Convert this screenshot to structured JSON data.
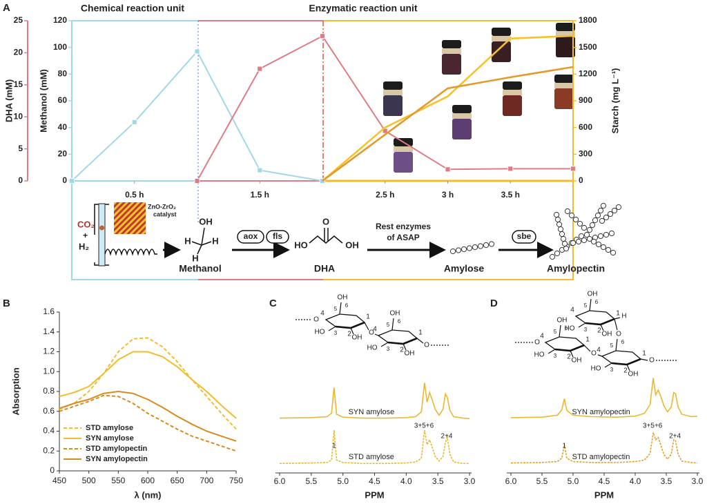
{
  "chart_data": [
    {
      "type": "line",
      "panel": "A",
      "unit_labels": [
        "Chemical reaction unit",
        "Enzymatic reaction unit"
      ],
      "x": [
        0,
        0.5,
        1,
        1.5,
        2,
        2.5,
        3,
        3.5,
        4
      ],
      "xlim": [
        0,
        4
      ],
      "xticks": [
        {
          "value": 0.5,
          "label": "0.5 h"
        },
        {
          "value": 1.5,
          "label": "1.5 h"
        },
        {
          "value": 2.5,
          "label": "2.5 h"
        },
        {
          "value": 3,
          "label": "3 h"
        },
        {
          "value": 3.5,
          "label": "3.5 h"
        }
      ],
      "ylabel": "DHA (mM)",
      "ylim": [
        0,
        25
      ],
      "yticks": [
        0,
        5,
        10,
        15,
        20,
        25
      ],
      "ycolor": "#e07b86",
      "y3label": "Methanol (mM)",
      "y3lim": [
        0,
        120
      ],
      "y3ticks": [
        0,
        20,
        40,
        60,
        80,
        100,
        120
      ],
      "y3color": "#9fd8e6",
      "y2label": "Starch (mg L⁻¹)",
      "y2lim": [
        0,
        1800
      ],
      "y2ticks": [
        0,
        300,
        600,
        900,
        1200,
        1500,
        1800
      ],
      "y2color": "#f2bd2a",
      "series": [
        {
          "color": "#9fd8e6",
          "axis": "y3",
          "marker": "square",
          "values": [
            0,
            44,
            97,
            8,
            0,
            null,
            null,
            null,
            null
          ]
        },
        {
          "color": "#e07b86",
          "axis": "y",
          "marker": "square",
          "values": [
            null,
            null,
            0,
            17.5,
            22.6,
            7.8,
            1.8,
            1.9,
            1.9
          ]
        },
        {
          "color": "#f5c22a",
          "axis": "y2",
          "values": [
            null,
            null,
            null,
            null,
            0,
            600,
            950,
            1600,
            1630
          ]
        },
        {
          "color": "#e29a2a",
          "axis": "y2",
          "values": [
            null,
            null,
            null,
            null,
            0,
            520,
            1040,
            1165,
            1280
          ]
        }
      ]
    },
    {
      "type": "line",
      "panel": "B",
      "xlabel": "λ (nm)",
      "ylabel": "Absorption",
      "x": [
        450,
        475,
        500,
        525,
        550,
        575,
        600,
        625,
        650,
        675,
        700,
        725,
        750
      ],
      "xlim": [
        450,
        750
      ],
      "xticks": [
        450,
        500,
        550,
        600,
        650,
        700,
        750
      ],
      "ylim": [
        0,
        1.6
      ],
      "yticks": [
        0,
        0.2,
        0.4,
        0.6,
        0.8,
        {
          "value": 1,
          "label": "1.0"
        },
        1.2,
        1.4,
        1.6
      ],
      "legend": "lower left",
      "series": [
        {
          "name": "STD amylose",
          "color": "#f2bd2a",
          "dashed": true,
          "values": [
            0.62,
            0.68,
            0.8,
            0.98,
            1.2,
            1.33,
            1.34,
            1.25,
            1.1,
            0.92,
            0.75,
            0.58,
            0.42
          ]
        },
        {
          "name": "SYN amylose",
          "color": "#f2bd2a",
          "values": [
            0.75,
            0.79,
            0.85,
            0.98,
            1.12,
            1.2,
            1.2,
            1.15,
            1.05,
            0.92,
            0.8,
            0.66,
            0.53
          ]
        },
        {
          "name": "STD amylopectin",
          "color": "#d98a1f",
          "dashed": true,
          "values": [
            0.6,
            0.65,
            0.7,
            0.76,
            0.75,
            0.68,
            0.58,
            0.5,
            0.42,
            0.35,
            0.3,
            0.25,
            0.2
          ]
        },
        {
          "name": "SYN amylopectin",
          "color": "#d98a1f",
          "values": [
            0.63,
            0.68,
            0.72,
            0.78,
            0.8,
            0.78,
            0.72,
            0.64,
            0.55,
            0.47,
            0.4,
            0.35,
            0.3
          ]
        }
      ]
    },
    {
      "type": "nmr",
      "panel": "C",
      "xlabel": "PPM",
      "xlim": [
        6,
        3
      ],
      "xticks": [
        {
          "value": 6,
          "label": "6.0"
        },
        5.5,
        {
          "value": 5,
          "label": "5.0"
        },
        4.5,
        {
          "value": 4,
          "label": "4.0"
        },
        3.5,
        {
          "value": 3,
          "label": "3.0"
        }
      ],
      "x": [
        6.0,
        5.5,
        5.25,
        5.18,
        5.14,
        5.1,
        5.0,
        4.7,
        4.3,
        4.0,
        3.85,
        3.76,
        3.71,
        3.67,
        3.63,
        3.59,
        3.54,
        3.48,
        3.42,
        3.38,
        3.35,
        3.31,
        3.25,
        3.1,
        3.0
      ],
      "series": [
        {
          "name": "SYN amylose",
          "color": "#e8b830",
          "values": [
            2,
            3,
            5,
            12,
            65,
            10,
            4,
            2,
            2,
            3,
            5,
            15,
            75,
            35,
            55,
            40,
            20,
            8,
            20,
            52,
            45,
            18,
            5,
            2,
            1
          ]
        },
        {
          "name": "STD amylose",
          "color": "#e8b830",
          "dashed": true,
          "values": [
            1,
            2,
            3,
            8,
            70,
            8,
            3,
            1,
            1,
            2,
            4,
            12,
            70,
            40,
            50,
            35,
            15,
            6,
            15,
            45,
            55,
            20,
            4,
            1,
            1
          ]
        }
      ],
      "annotations": [
        "1",
        "3+5+6",
        "2+4"
      ],
      "structure": {
        "unit_labels": [
          [
            "OH",
            "6",
            "4",
            "5",
            "HO",
            "3",
            "2",
            "OH",
            "1"
          ],
          [
            "OH",
            "6",
            "4",
            "5",
            "HO",
            "3",
            "2",
            "OH",
            "1"
          ]
        ],
        "links": [
          "O",
          "O",
          "O"
        ]
      }
    },
    {
      "type": "nmr",
      "panel": "D",
      "xlabel": "PPM",
      "xlim": [
        6,
        3
      ],
      "xticks": [
        {
          "value": 6,
          "label": "6.0"
        },
        5.5,
        {
          "value": 5,
          "label": "5.0"
        },
        4.5,
        {
          "value": 4,
          "label": "4.0"
        },
        3.5,
        {
          "value": 3,
          "label": "3.0"
        }
      ],
      "x": [
        6.0,
        5.5,
        5.25,
        5.18,
        5.14,
        5.1,
        5.0,
        4.7,
        4.3,
        4.0,
        3.85,
        3.76,
        3.71,
        3.67,
        3.63,
        3.59,
        3.54,
        3.48,
        3.42,
        3.38,
        3.35,
        3.31,
        3.25,
        3.1,
        3.0
      ],
      "series": [
        {
          "name": "SYN amylopectin",
          "color": "#e8b830",
          "values": [
            3,
            4,
            8,
            20,
            42,
            18,
            8,
            5,
            4,
            6,
            12,
            30,
            85,
            50,
            60,
            48,
            28,
            15,
            25,
            55,
            52,
            25,
            10,
            5,
            6
          ]
        },
        {
          "name": "STD amylopectin",
          "color": "#e3a22a",
          "dashed": true,
          "values": [
            2,
            3,
            5,
            12,
            40,
            12,
            5,
            3,
            3,
            5,
            8,
            22,
            65,
            50,
            55,
            40,
            20,
            10,
            20,
            50,
            48,
            20,
            6,
            3,
            2
          ]
        }
      ],
      "annotations": [
        "1",
        "3+5+6",
        "2+4"
      ],
      "structure": {
        "unit_labels": [
          [
            "OH",
            "6",
            "4",
            "5",
            "HO",
            "3",
            "2",
            "OH",
            "1"
          ],
          [
            "OH",
            "6",
            "4",
            "5",
            "HO",
            "3",
            "2",
            "OH",
            "1"
          ],
          [
            "O",
            "6",
            "4",
            "5",
            "HO",
            "3",
            "2",
            "OH",
            "1"
          ]
        ],
        "links": [
          "O",
          "O",
          "O",
          "H"
        ]
      }
    }
  ],
  "scheme": {
    "catalyst": [
      "ZnO-ZrO₂",
      "catalyst"
    ],
    "reactants": [
      "CO₂",
      "+",
      "H₂"
    ],
    "methanol_atoms": [
      "OH",
      "H",
      "H",
      "H"
    ],
    "methanol": "Methanol",
    "enzymes_1": [
      "aox",
      "fls"
    ],
    "dha_atoms": [
      "O",
      "HO",
      "OH"
    ],
    "dha": "DHA",
    "enzymes_2": [
      "Rest enzymes",
      "of ASAP"
    ],
    "amylose": "Amylose",
    "enzyme_3": "sbe",
    "amylopectin": "Amylopectin"
  }
}
